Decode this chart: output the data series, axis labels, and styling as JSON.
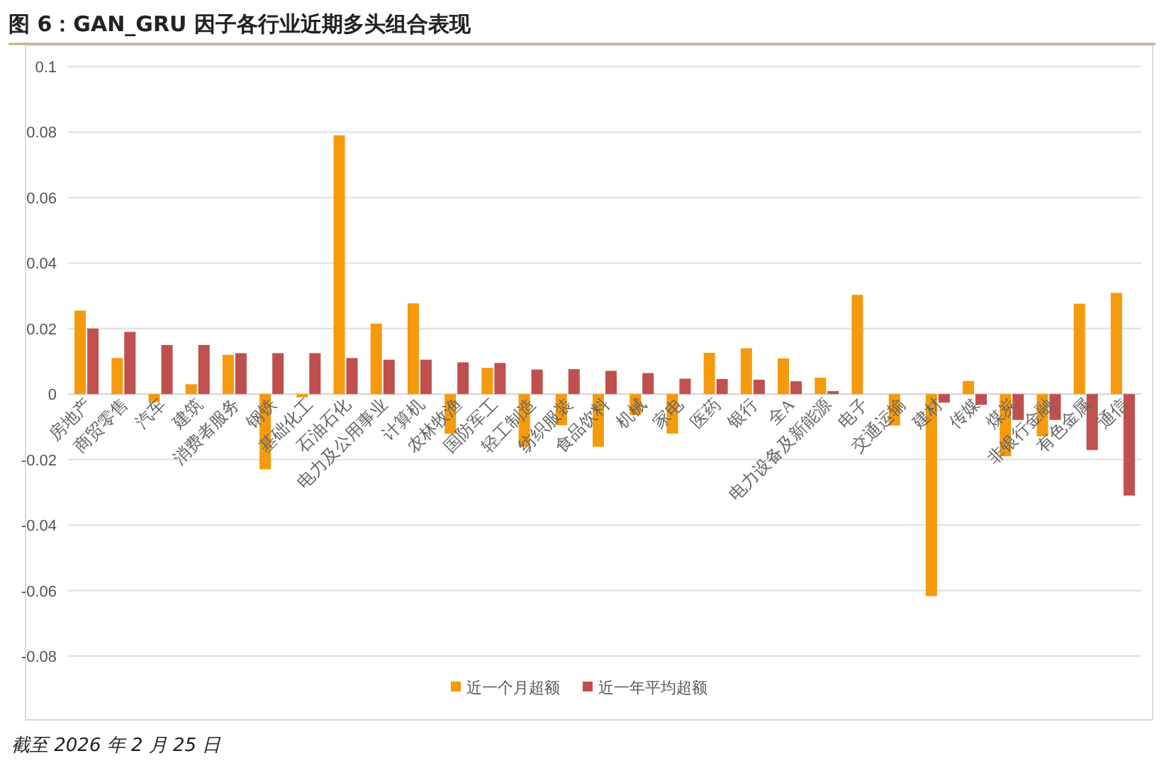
{
  "chart_data": {
    "type": "bar",
    "title": "图 6：GAN_GRU 因子各行业近期多头组合表现",
    "categories": [
      "房地产",
      "商贸零售",
      "汽车",
      "建筑",
      "消费者服务",
      "钢铁",
      "基础化工",
      "石油石化",
      "电力及公用事业",
      "计算机",
      "农林牧渔",
      "国防军工",
      "轻工制造",
      "纺织服装",
      "食品饮料",
      "机械",
      "家电",
      "医药",
      "银行",
      "全A",
      "电力设备及新能源",
      "电子",
      "交通运输",
      "建材",
      "传媒",
      "煤炭",
      "非银行金融",
      "有色金属",
      "通信"
    ],
    "series": [
      {
        "name": "近一个月超额",
        "color": "#f59a0c",
        "values": [
          0.0255,
          0.011,
          -0.0025,
          0.003,
          0.012,
          -0.023,
          -0.001,
          0.079,
          0.0215,
          0.0277,
          -0.0121,
          0.008,
          -0.016,
          -0.0095,
          -0.0161,
          -0.0064,
          -0.0121,
          0.0126,
          0.014,
          0.0109,
          0.005,
          0.0303,
          -0.0096,
          -0.0617,
          0.004,
          -0.019,
          -0.0129,
          0.0276,
          0.0309
        ]
      },
      {
        "name": "近一年平均超额",
        "color": "#c0504d",
        "values": [
          0.02,
          0.019,
          0.015,
          0.015,
          0.0125,
          0.0125,
          0.0125,
          0.011,
          0.0105,
          0.0105,
          0.0097,
          0.0095,
          0.0075,
          0.0076,
          0.0071,
          0.0064,
          0.0047,
          0.0046,
          0.0044,
          0.0039,
          0.0009,
          0,
          0,
          -0.0026,
          -0.0033,
          -0.0079,
          -0.0079,
          -0.0171,
          -0.031
        ]
      }
    ],
    "ylim": [
      -0.09,
      0.1
    ],
    "yticks": [
      0.1,
      0.08,
      0.06,
      0.04,
      0.02,
      0,
      -0.02,
      -0.04,
      -0.06,
      -0.08
    ],
    "grid": "y",
    "legend": "bottom",
    "annotations": [
      "截至 2026 年 2 月 25 日"
    ]
  }
}
